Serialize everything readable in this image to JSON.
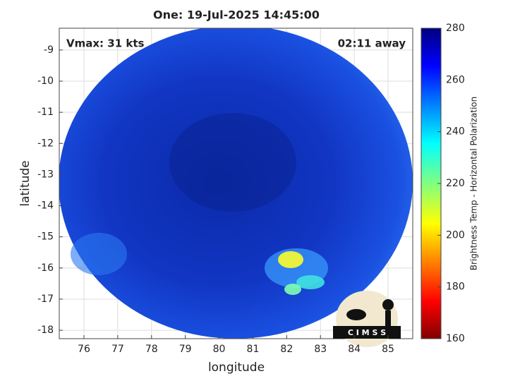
{
  "chart_data": {
    "type": "image",
    "title": "One: 19-Jul-2025 14:45:00",
    "annotations": [
      "Vmax: 31 kts",
      "02:11 away"
    ],
    "xlabel": "longitude",
    "ylabel": "latitude",
    "xlim": [
      75.27,
      85.73
    ],
    "ylim": [
      -18.27,
      -8.3
    ],
    "xticks": [
      76,
      77,
      78,
      79,
      80,
      81,
      82,
      83,
      84,
      85
    ],
    "yticks": [
      -18,
      -17,
      -16,
      -15,
      -14,
      -13,
      -12,
      -11,
      -10,
      -9
    ],
    "grid": true,
    "colorbar": {
      "label": "Brightness Temp - Horizontal Polarization",
      "lim": [
        160,
        280
      ],
      "ticks": [
        160,
        180,
        200,
        220,
        240,
        260,
        280
      ]
    },
    "logo_text": "C I M S S"
  }
}
